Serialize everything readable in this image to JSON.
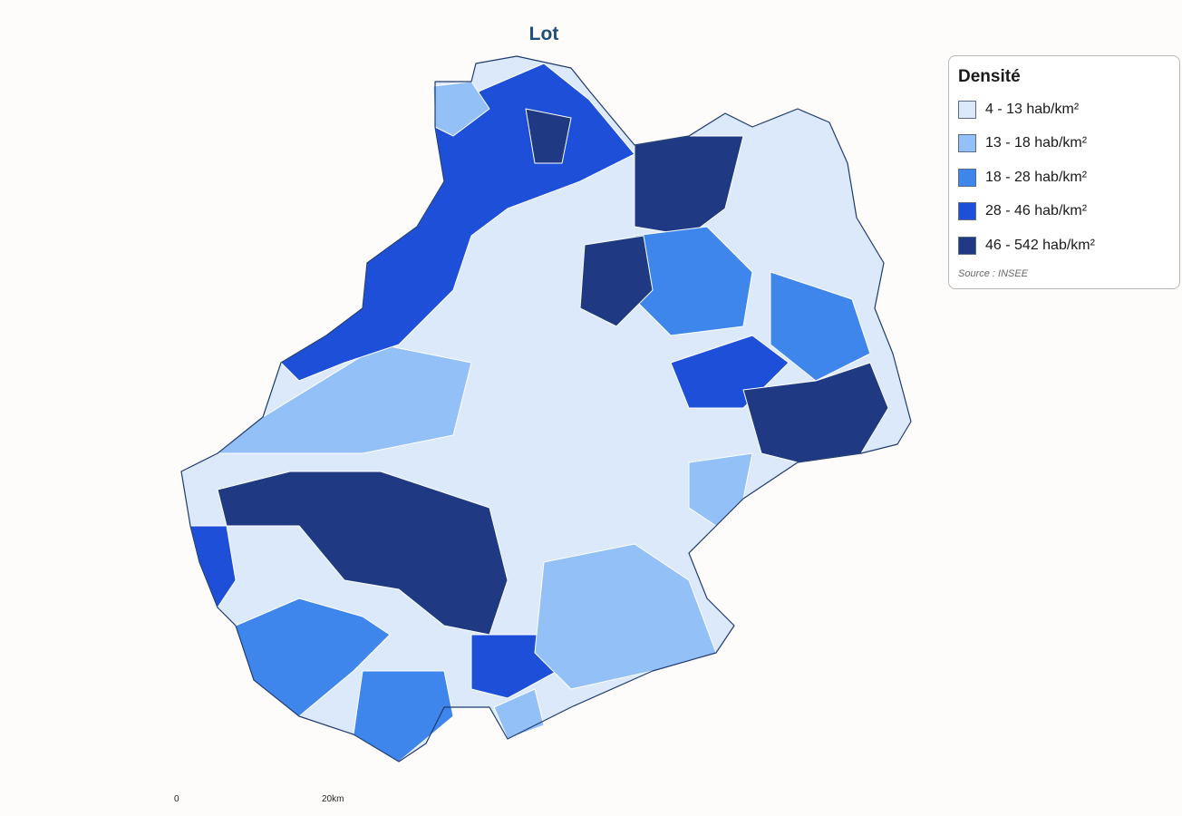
{
  "title": "Lot",
  "legend": {
    "title": "Densité",
    "items": [
      {
        "label": "4 - 13 hab/km²",
        "color": "#dbe9fb"
      },
      {
        "label": "13 - 18 hab/km²",
        "color": "#93c1f7"
      },
      {
        "label": "18 - 28 hab/km²",
        "color": "#3f86ec"
      },
      {
        "label": "28 - 46 hab/km²",
        "color": "#1d4fd9"
      },
      {
        "label": "46 - 542 hab/km²",
        "color": "#1f3a82"
      }
    ],
    "source": "Source : INSEE"
  },
  "scale": {
    "start": "0",
    "end": "20km"
  }
}
